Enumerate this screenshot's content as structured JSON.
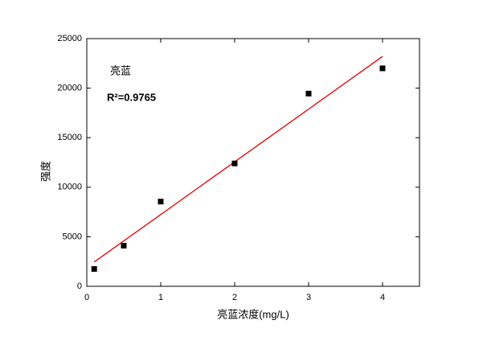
{
  "chart_data": {
    "type": "scatter",
    "annotations": [
      "亮蓝",
      "R²=0.9765"
    ],
    "xlabel": "亮蓝浓度(mg/L)",
    "ylabel": "强度",
    "x": [
      0.1,
      0.5,
      1,
      2,
      3,
      4
    ],
    "series": [
      {
        "name": "亮蓝",
        "color": "#000000",
        "values": [
          1750,
          4100,
          8550,
          12400,
          19450,
          22000
        ]
      }
    ],
    "fit": {
      "x": [
        0.1,
        4
      ],
      "values": [
        2450,
        23200
      ],
      "color": "#e00000"
    },
    "xlim": [
      0,
      4.5
    ],
    "xticks": [
      0,
      1,
      2,
      3,
      4
    ],
    "ylim": [
      0,
      25000
    ],
    "yticks": [
      0,
      5000,
      10000,
      15000,
      20000,
      25000
    ]
  }
}
